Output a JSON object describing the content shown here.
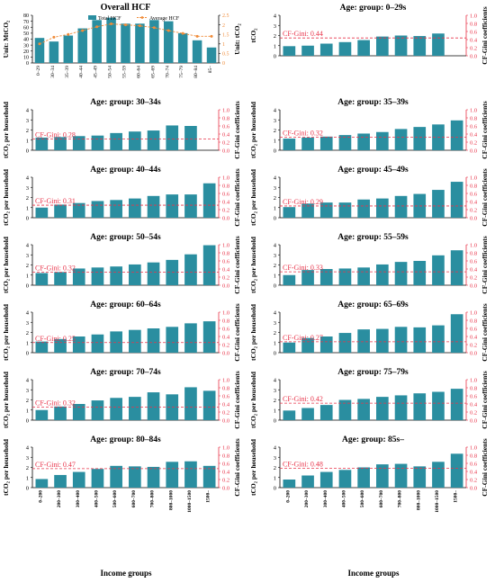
{
  "figure": {
    "x_axis_title": "Income groups",
    "bar_color": "#2a8ea0",
    "gini_color": "#e8344a",
    "avg_line_color": "#f08c3a"
  },
  "chart_data": [
    {
      "type": "bar+line",
      "title": "Overall HCF",
      "ylabel": "Unit: MtCO₂",
      "y2label": "Unit: tCO₂",
      "categories": [
        "0–29",
        "30–34",
        "35–39",
        "40–44",
        "45–49",
        "50–54",
        "55–59",
        "60–64",
        "65–69",
        "70–74",
        "75–79",
        "80–84",
        "85–"
      ],
      "series": [
        {
          "name": "Total HCF",
          "axis": "left",
          "values": [
            42,
            36,
            46,
            58,
            72,
            76,
            66,
            66,
            72,
            70,
            50,
            38,
            26
          ]
        },
        {
          "name": "Average HCF",
          "axis": "right",
          "values": [
            1.0,
            1.35,
            1.5,
            1.7,
            1.9,
            2.05,
            2.0,
            1.95,
            1.85,
            1.7,
            1.55,
            1.4,
            1.4
          ]
        }
      ],
      "ylim": [
        0,
        80
      ],
      "yticks": [
        0,
        10,
        20,
        30,
        40,
        50,
        60,
        70,
        80
      ],
      "y2lim": [
        0,
        2.5
      ],
      "y2ticks": [
        0,
        0.5,
        1,
        1.5,
        2,
        2.5
      ],
      "legend": "top-center"
    },
    {
      "type": "bar",
      "title": "Age: group: 0–29s",
      "ylabel": "tCO₂",
      "y2label": "CF-Gini coefficients",
      "gini_label": "CF-Gini: 0.44",
      "gini": 0.44,
      "values": [
        0.95,
        1.0,
        1.2,
        1.35,
        1.55,
        1.9,
        2.0,
        1.95,
        2.2,
        null
      ]
    },
    {
      "type": "bar",
      "title": "Age: group: 30–34s",
      "ylabel": "tCO₂ per household",
      "y2label": "CF-Gini coefficients",
      "gini_label": "CF-Gini: 0.28",
      "gini": 0.28,
      "values": [
        1.25,
        1.3,
        1.4,
        1.45,
        1.7,
        1.85,
        1.95,
        2.45,
        2.4,
        null
      ]
    },
    {
      "type": "bar",
      "title": "Age: group: 35–39s",
      "ylabel": "tCO₂ per household",
      "y2label": "CF-Gini coefficients",
      "gini_label": "CF-Gini: 0.32",
      "gini": 0.32,
      "values": [
        1.15,
        1.25,
        1.35,
        1.5,
        1.65,
        1.8,
        2.1,
        2.3,
        2.55,
        2.95
      ]
    },
    {
      "type": "bar",
      "title": "Age: group: 40–44s",
      "ylabel": "tCO₂ per household",
      "y2label": "CF-Gini coefficients",
      "gini_label": "CF-Gini: 0.31",
      "gini": 0.31,
      "values": [
        1.0,
        1.3,
        1.45,
        1.65,
        1.75,
        1.9,
        2.15,
        2.3,
        2.3,
        3.4
      ]
    },
    {
      "type": "bar",
      "title": "Age: group: 45–49s",
      "ylabel": "tCO₂ per household",
      "y2label": "CF-Gini coefficients",
      "gini_label": "CF-Gini: 0.29",
      "gini": 0.29,
      "values": [
        1.05,
        1.4,
        1.5,
        1.5,
        1.8,
        1.9,
        2.15,
        2.35,
        2.75,
        3.55
      ]
    },
    {
      "type": "bar",
      "title": "Age: group: 50–54s",
      "ylabel": "tCO₂ per household",
      "y2label": "CF-Gini coefficients",
      "gini_label": "CF-Gini: 0.32",
      "gini": 0.32,
      "values": [
        1.2,
        1.3,
        1.65,
        1.75,
        1.85,
        2.05,
        2.25,
        2.5,
        3.05,
        3.95
      ]
    },
    {
      "type": "bar",
      "title": "Age: group: 55–59s",
      "ylabel": "tCO₂ per household",
      "y2label": "CF-Gini coefficients",
      "gini_label": "CF-Gini: 0.33",
      "gini": 0.33,
      "values": [
        1.0,
        1.5,
        1.6,
        1.65,
        1.75,
        2.05,
        2.3,
        2.4,
        2.95,
        3.45
      ]
    },
    {
      "type": "bar",
      "title": "Age: group: 60–64s",
      "ylabel": "tCO₂ per household",
      "y2label": "CF-Gini coefficients",
      "gini_label": "CF-Gini: 0.25",
      "gini": 0.25,
      "values": [
        1.1,
        1.35,
        1.6,
        1.8,
        2.1,
        2.25,
        2.4,
        2.55,
        2.9,
        3.1
      ]
    },
    {
      "type": "bar",
      "title": "Age: group: 65–69s",
      "ylabel": "tCO₂ per household",
      "y2label": "CF-Gini coefficients",
      "gini_label": "CF-Gini: 0.27",
      "gini": 0.27,
      "values": [
        1.0,
        1.45,
        1.6,
        1.95,
        2.3,
        2.35,
        2.55,
        2.5,
        2.7,
        3.8
      ]
    },
    {
      "type": "bar",
      "title": "Age: group: 70–74s",
      "ylabel": "tCO₂ per household",
      "y2label": "CF-Gini coefficients",
      "gini_label": "CF-Gini: 0.32",
      "gini": 0.32,
      "values": [
        1.0,
        1.35,
        1.6,
        1.95,
        2.2,
        2.3,
        2.75,
        2.55,
        3.25,
        2.9
      ]
    },
    {
      "type": "bar",
      "title": "Age: group: 75–79s",
      "ylabel": "tCO₂ per household",
      "y2label": "CF-Gini coefficients",
      "gini_label": "CF-Gini: 0.42",
      "gini": 0.42,
      "values": [
        0.95,
        1.2,
        1.5,
        2.0,
        2.1,
        2.3,
        2.45,
        2.65,
        2.8,
        3.1
      ]
    },
    {
      "type": "bar",
      "title": "Age: group: 80–84s",
      "ylabel": "tCO₂ per household",
      "y2label": "CF-Gini coefficients",
      "gini_label": "CF-Gini: 0.47",
      "gini": 0.47,
      "values": [
        0.85,
        1.25,
        1.55,
        1.85,
        2.15,
        2.1,
        2.05,
        2.55,
        2.6,
        2.15
      ]
    },
    {
      "type": "bar",
      "title": "Age: group: 85s–",
      "ylabel": "tCO₂ per household",
      "y2label": "CF-Gini coefficients",
      "gini_label": "CF-Gini: 0.48",
      "gini": 0.48,
      "values": [
        0.8,
        1.2,
        1.55,
        1.75,
        2.0,
        2.3,
        2.35,
        2.1,
        2.55,
        3.35
      ]
    }
  ],
  "income_categories": [
    "0–200",
    "200–300",
    "300–400",
    "400–500",
    "500–600",
    "600–700",
    "700–800",
    "800–1000",
    "1000–1500",
    "1500–"
  ],
  "left_yticks": [
    "0",
    "1",
    "2",
    "3",
    "4"
  ],
  "right_yticks": [
    "0.0",
    "0.2",
    "0.4",
    "0.6",
    "0.8",
    "1.0"
  ],
  "left_ylim": [
    0,
    4
  ],
  "right_ylim": [
    0,
    1
  ]
}
